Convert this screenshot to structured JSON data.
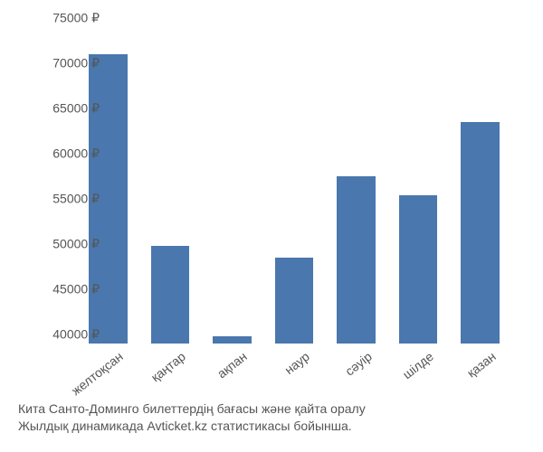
{
  "chart": {
    "type": "bar",
    "categories": [
      "желтоқсан",
      "қаңтар",
      "ақпан",
      "наур",
      "сәуір",
      "шілде",
      "қазан"
    ],
    "values": [
      71000,
      49800,
      39800,
      48500,
      57500,
      55400,
      63500
    ],
    "bar_color": "#4a77ad",
    "background_color": "#ffffff",
    "ylim_min": 39000,
    "ylim_max": 75000,
    "ytick_min": 40000,
    "ytick_max": 75000,
    "ytick_step": 5000,
    "ytick_suffix": " ₽",
    "y_label_color": "#555555",
    "x_label_color": "#555555",
    "label_fontsize": 14,
    "bar_width_ratio": 0.62,
    "x_label_rotation": -38
  },
  "caption": {
    "line1": "Кита Санто-Доминго билеттердің бағасы және қайта оралу",
    "line2": "Жылдық динамикада Avticket.kz статистикасы бойынша.",
    "color": "#555555",
    "fontsize": 14
  }
}
